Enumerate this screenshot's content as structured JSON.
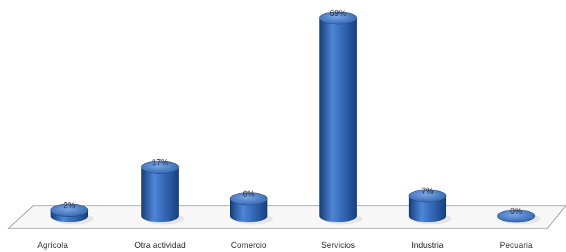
{
  "colors": {
    "bar": "#2e5fa8",
    "bar_light": "#6f9be0",
    "bar_dark": "#18407e",
    "floor_line": "#8a8a8a",
    "label": "#333333"
  },
  "chart_data": {
    "type": "bar",
    "style": "3d-cylinder",
    "title": "",
    "xlabel": "",
    "ylabel": "",
    "categories": [
      "Agrícola",
      "Otra actividad",
      "Comercio",
      "Servicios",
      "Industria",
      "Pecuaria"
    ],
    "values": [
      2,
      17,
      6,
      69,
      7,
      0
    ],
    "data_labels": [
      "2%",
      "17%",
      "6%",
      "69%",
      "7%",
      "0%"
    ],
    "unit": "%",
    "grid": false,
    "legend": "none"
  }
}
